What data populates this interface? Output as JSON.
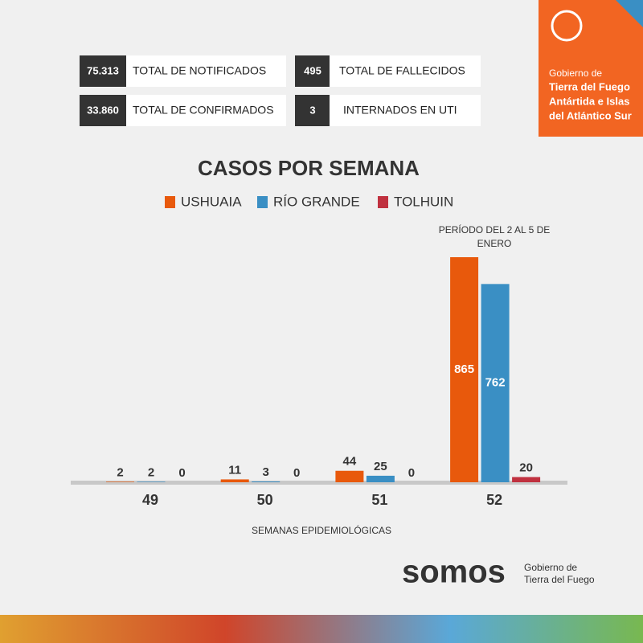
{
  "header": {
    "lines": [
      "Gobierno de",
      "Tierra del Fuego",
      "Antártida e Islas",
      "del Atlántico Sur"
    ]
  },
  "stats": [
    {
      "value": "75.313",
      "label": "TOTAL DE NOTIFICADOS"
    },
    {
      "value": "495",
      "label": "TOTAL DE FALLECIDOS"
    },
    {
      "value": "33.860",
      "label": "TOTAL DE CONFIRMADOS"
    },
    {
      "value": "3",
      "label": "INTERNADOS EN UTI"
    }
  ],
  "chart_data": {
    "type": "bar",
    "title": "CASOS POR SEMANA",
    "x_label": "SEMANAS EPIDEMIOLÓGICAS",
    "annotation": "PERÍODO DEL 2 AL 5 DE ENERO",
    "categories": [
      "49",
      "50",
      "51",
      "52"
    ],
    "series": [
      {
        "name": "USHUAIA",
        "color": "#e8590c",
        "values": [
          2,
          11,
          44,
          865
        ]
      },
      {
        "name": "RÍO GRANDE",
        "color": "#3a8fc4",
        "values": [
          2,
          3,
          25,
          762
        ]
      },
      {
        "name": "TOLHUIN",
        "color": "#c0313f",
        "values": [
          0,
          0,
          0,
          20
        ]
      }
    ],
    "legend": "top"
  },
  "footer": {
    "brand": "somos",
    "lines": [
      "Gobierno de",
      "Tierra del Fuego"
    ]
  }
}
